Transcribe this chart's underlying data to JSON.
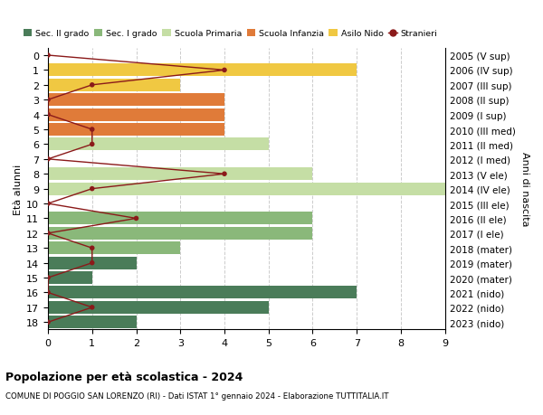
{
  "ages": [
    18,
    17,
    16,
    15,
    14,
    13,
    12,
    11,
    10,
    9,
    8,
    7,
    6,
    5,
    4,
    3,
    2,
    1,
    0
  ],
  "years": [
    "2005 (V sup)",
    "2006 (IV sup)",
    "2007 (III sup)",
    "2008 (II sup)",
    "2009 (I sup)",
    "2010 (III med)",
    "2011 (II med)",
    "2012 (I med)",
    "2013 (V ele)",
    "2014 (IV ele)",
    "2015 (III ele)",
    "2016 (II ele)",
    "2017 (I ele)",
    "2018 (mater)",
    "2019 (mater)",
    "2020 (mater)",
    "2021 (nido)",
    "2022 (nido)",
    "2023 (nido)"
  ],
  "bar_values": [
    2,
    5,
    7,
    1,
    2,
    3,
    6,
    6,
    0,
    9,
    6,
    0,
    5,
    4,
    4,
    4,
    3,
    7,
    0
  ],
  "bar_colors": [
    "#4a7c59",
    "#4a7c59",
    "#4a7c59",
    "#4a7c59",
    "#4a7c59",
    "#8ab87a",
    "#8ab87a",
    "#8ab87a",
    "#c5dea5",
    "#c5dea5",
    "#c5dea5",
    "#c5dea5",
    "#c5dea5",
    "#e07b39",
    "#e07b39",
    "#e07b39",
    "#f0c842",
    "#f0c842",
    "#f0c842"
  ],
  "stranieri_values": [
    0,
    1,
    0,
    0,
    1,
    1,
    0,
    2,
    0,
    1,
    4,
    0,
    1,
    1,
    0,
    0,
    1,
    4,
    0
  ],
  "stranieri_color": "#8b1a1a",
  "title": "Popolazione per età scolastica - 2024",
  "subtitle": "COMUNE DI POGGIO SAN LORENZO (RI) - Dati ISTAT 1° gennaio 2024 - Elaborazione TUTTITALIA.IT",
  "ylabel_left": "Età alunni",
  "ylabel_right": "Anni di nascita",
  "xlim": [
    0,
    9
  ],
  "xticks": [
    0,
    1,
    2,
    3,
    4,
    5,
    6,
    7,
    8,
    9
  ],
  "bg_color": "#ffffff",
  "grid_color": "#cccccc",
  "legend_items": [
    {
      "label": "Sec. II grado",
      "color": "#4a7c59",
      "type": "patch"
    },
    {
      "label": "Sec. I grado",
      "color": "#8ab87a",
      "type": "patch"
    },
    {
      "label": "Scuola Primaria",
      "color": "#c5dea5",
      "type": "patch"
    },
    {
      "label": "Scuola Infanzia",
      "color": "#e07b39",
      "type": "patch"
    },
    {
      "label": "Asilo Nido",
      "color": "#f0c842",
      "type": "patch"
    },
    {
      "label": "Stranieri",
      "color": "#8b1a1a",
      "type": "line"
    }
  ]
}
